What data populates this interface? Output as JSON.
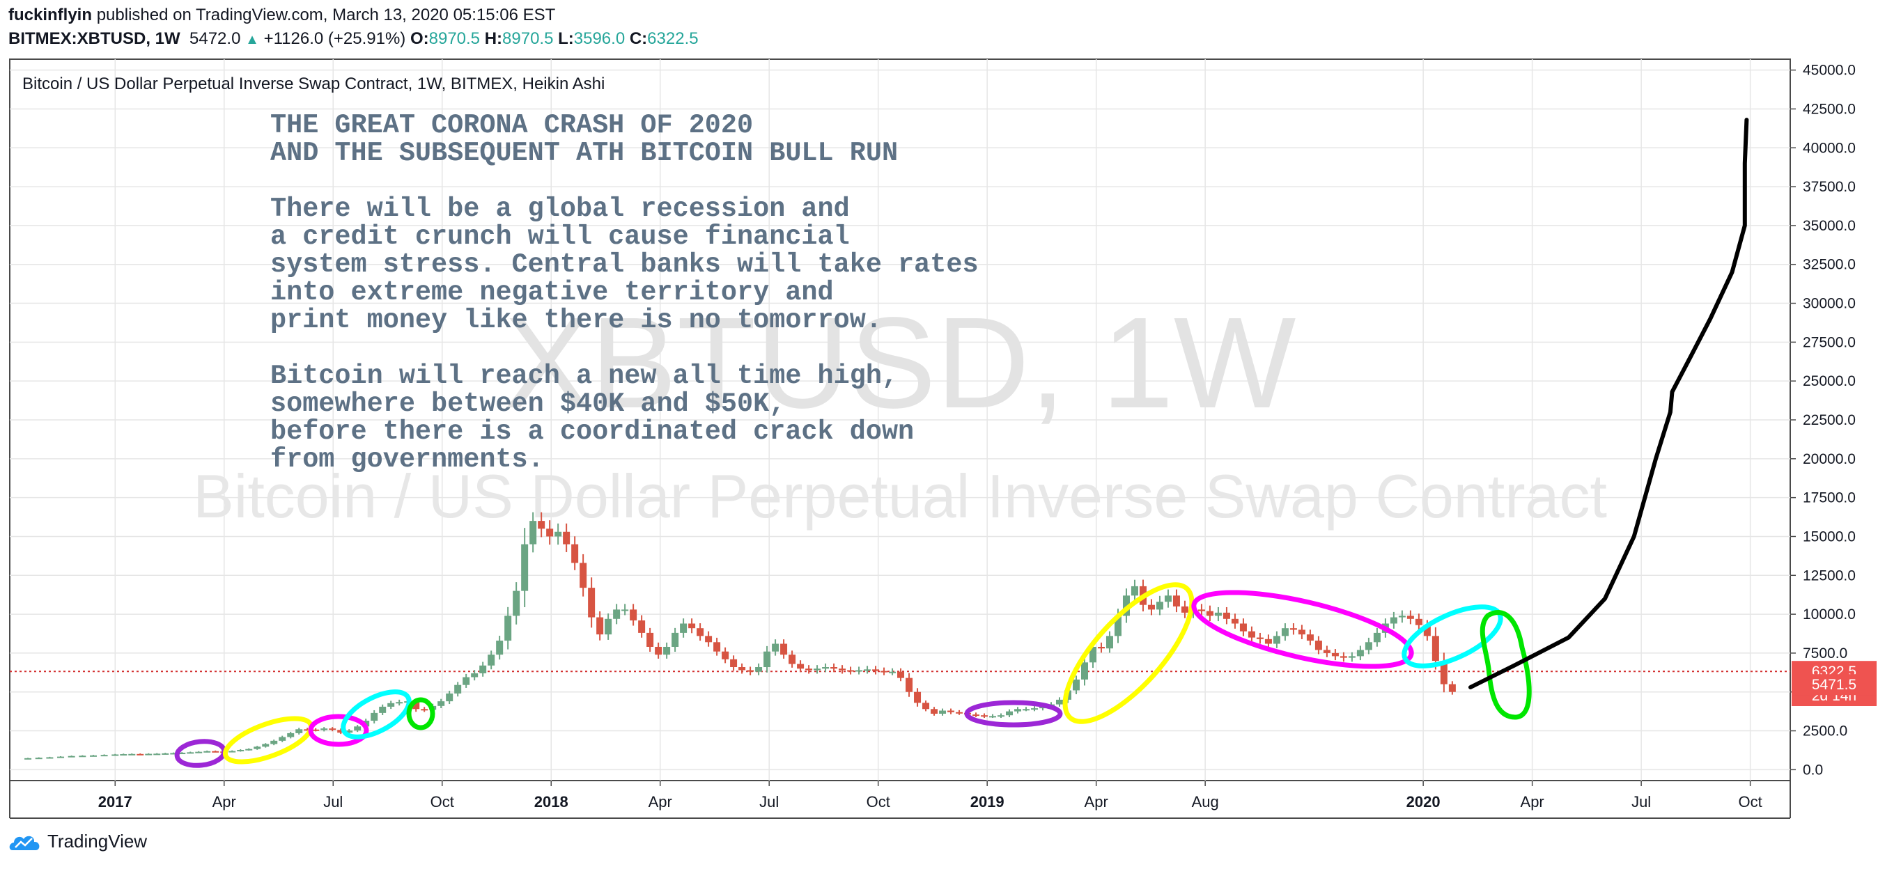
{
  "header": {
    "author": "fuckinflyin",
    "published": "published on TradingView.com, March 13, 2020 05:15:06 EST",
    "symbol": "BITMEX:XBTUSD, 1W",
    "last": "5472.0",
    "change": "+1126.0 (+25.91%)",
    "open_label": "O:",
    "open": "8970.5",
    "high_label": "H:",
    "high": "8970.5",
    "low_label": "L:",
    "low": "3596.0",
    "close_label": "C:",
    "close": "6322.5"
  },
  "legend_title": "Bitcoin / US Dollar Perpetual Inverse Swap Contract, 1W, BITMEX, Heikin Ashi",
  "watermark": {
    "line1": "XBTUSD, 1W",
    "line2": "Bitcoin / US Dollar Perpetual Inverse Swap Contract"
  },
  "annotation": {
    "heading1": "THE GREAT CORONA CRASH OF 2020",
    "heading2": "AND THE SUBSEQUENT ATH BITCOIN BULL RUN",
    "p1": [
      "There will be a global recession and",
      "a credit crunch will cause financial",
      "system stress. Central banks will take rates",
      "into extreme negative territory and",
      "print money like there is no tomorrow."
    ],
    "p2": [
      "Bitcoin will reach a new all time high,",
      "somewhere between $40K and $50K,",
      "before there is a coordinated crack down",
      "from governments."
    ]
  },
  "price_tags": {
    "last_price": "6322.5",
    "countdown": "2d 14h",
    "current": "5471.5"
  },
  "brand": "TradingView",
  "colors": {
    "up": "#6ba583",
    "down": "#d75442",
    "tag": "#ef5350",
    "grid": "#e6e6e6",
    "text": "#131722",
    "annotation": "#5d7185",
    "yellow": "#ffff00",
    "magenta": "#ff00ff",
    "cyan": "#00ffff",
    "purple": "#9c27d6",
    "green": "#00e600"
  },
  "chart_data": {
    "type": "candlestick",
    "style": "Heikin Ashi",
    "timeframe": "1W",
    "yaxis": {
      "ticks": [
        0,
        2500,
        5000,
        7500,
        10000,
        12500,
        15000,
        17500,
        20000,
        22500,
        25000,
        27500,
        30000,
        32500,
        35000,
        37500,
        40000,
        42500,
        45000
      ],
      "labels": [
        "0.0",
        "2500.0",
        "5000.0",
        "7500.0",
        "10000.0",
        "12500.0",
        "15000.0",
        "17500.0",
        "20000.0",
        "22500.0",
        "25000.0",
        "27500.0",
        "30000.0",
        "32500.0",
        "35000.0",
        "37500.0",
        "40000.0",
        "42500.0",
        "45000.0"
      ],
      "ylim": [
        -700,
        45700
      ]
    },
    "xaxis": {
      "labels": [
        {
          "t": 0,
          "text": "2017",
          "bold": true
        },
        {
          "t": 3,
          "text": "Apr"
        },
        {
          "t": 6,
          "text": "Jul"
        },
        {
          "t": 9,
          "text": "Oct"
        },
        {
          "t": 12,
          "text": "2018",
          "bold": true
        },
        {
          "t": 15,
          "text": "Apr"
        },
        {
          "t": 18,
          "text": "Jul"
        },
        {
          "t": 21,
          "text": "Oct"
        },
        {
          "t": 24,
          "text": "2019",
          "bold": true
        },
        {
          "t": 27,
          "text": "Apr"
        },
        {
          "t": 30,
          "text": "Aug"
        },
        {
          "t": 36,
          "text": "2020",
          "bold": true
        },
        {
          "t": 39,
          "text": "Apr"
        },
        {
          "t": 42,
          "text": "Jul"
        },
        {
          "t": 45,
          "text": "Oct"
        }
      ],
      "xlim": [
        -2.9,
        46.1
      ],
      "unit": "months since Jan 2017"
    },
    "last_price_line": 6322.5,
    "series": [
      {
        "name": "XBTUSD weekly",
        "points": [
          [
            -2.7,
            700
          ],
          [
            -2.4,
            740
          ],
          [
            -2.1,
            770
          ],
          [
            -1.8,
            800
          ],
          [
            -1.5,
            840
          ],
          [
            -1.2,
            880
          ],
          [
            -0.9,
            900
          ],
          [
            -0.6,
            920
          ],
          [
            -0.3,
            950
          ],
          [
            0.0,
            980
          ],
          [
            0.23,
            1000
          ],
          [
            0.46,
            1010
          ],
          [
            0.69,
            1000
          ],
          [
            0.92,
            1020
          ],
          [
            1.15,
            1030
          ],
          [
            1.38,
            1050
          ],
          [
            1.61,
            1070
          ],
          [
            1.84,
            1090
          ],
          [
            2.07,
            1120
          ],
          [
            2.3,
            1150
          ],
          [
            2.53,
            1190
          ],
          [
            2.76,
            1170
          ],
          [
            2.99,
            1160
          ],
          [
            3.22,
            1200
          ],
          [
            3.45,
            1270
          ],
          [
            3.68,
            1330
          ],
          [
            3.91,
            1480
          ],
          [
            4.14,
            1650
          ],
          [
            4.37,
            1860
          ],
          [
            4.6,
            2100
          ],
          [
            4.83,
            2350
          ],
          [
            5.06,
            2600
          ],
          [
            5.29,
            2580
          ],
          [
            5.52,
            2550
          ],
          [
            5.75,
            2650
          ],
          [
            5.98,
            2560
          ],
          [
            6.21,
            2380
          ],
          [
            6.44,
            2520
          ],
          [
            6.67,
            2780
          ],
          [
            6.9,
            3150
          ],
          [
            7.13,
            3650
          ],
          [
            7.36,
            4050
          ],
          [
            7.59,
            4280
          ],
          [
            7.82,
            4350
          ],
          [
            8.05,
            4400
          ],
          [
            8.28,
            3900
          ],
          [
            8.51,
            3850
          ],
          [
            8.74,
            4100
          ],
          [
            8.97,
            4400
          ],
          [
            9.2,
            4900
          ],
          [
            9.43,
            5450
          ],
          [
            9.66,
            5950
          ],
          [
            9.89,
            6200
          ],
          [
            10.12,
            6700
          ],
          [
            10.35,
            7400
          ],
          [
            10.58,
            8300
          ],
          [
            10.81,
            9900
          ],
          [
            11.04,
            11500
          ],
          [
            11.27,
            14500
          ],
          [
            11.5,
            16000
          ],
          [
            11.73,
            15500
          ],
          [
            11.96,
            15000
          ],
          [
            12.19,
            15300
          ],
          [
            12.42,
            14500
          ],
          [
            12.65,
            13300
          ],
          [
            12.88,
            11700
          ],
          [
            13.11,
            9800
          ],
          [
            13.34,
            8700
          ],
          [
            13.57,
            9700
          ],
          [
            13.8,
            10300
          ],
          [
            14.03,
            10300
          ],
          [
            14.26,
            9600
          ],
          [
            14.49,
            8800
          ],
          [
            14.72,
            7900
          ],
          [
            14.95,
            7400
          ],
          [
            15.18,
            7900
          ],
          [
            15.41,
            8800
          ],
          [
            15.64,
            9400
          ],
          [
            15.87,
            9100
          ],
          [
            16.1,
            8600
          ],
          [
            16.33,
            8200
          ],
          [
            16.56,
            7600
          ],
          [
            16.79,
            7100
          ],
          [
            17.02,
            6600
          ],
          [
            17.25,
            6400
          ],
          [
            17.48,
            6300
          ],
          [
            17.71,
            6600
          ],
          [
            17.94,
            7600
          ],
          [
            18.17,
            8100
          ],
          [
            18.4,
            7400
          ],
          [
            18.63,
            6800
          ],
          [
            18.86,
            6500
          ],
          [
            19.09,
            6400
          ],
          [
            19.32,
            6500
          ],
          [
            19.55,
            6600
          ],
          [
            19.78,
            6500
          ],
          [
            20.01,
            6400
          ],
          [
            20.24,
            6350
          ],
          [
            20.47,
            6400
          ],
          [
            20.7,
            6450
          ],
          [
            20.93,
            6350
          ],
          [
            21.16,
            6300
          ],
          [
            21.39,
            6300
          ],
          [
            21.62,
            5900
          ],
          [
            21.85,
            5000
          ],
          [
            22.08,
            4300
          ],
          [
            22.31,
            3900
          ],
          [
            22.54,
            3600
          ],
          [
            22.77,
            3800
          ],
          [
            23.0,
            3700
          ],
          [
            23.23,
            3650
          ],
          [
            23.46,
            3550
          ],
          [
            23.69,
            3500
          ],
          [
            23.92,
            3450
          ],
          [
            24.15,
            3450
          ],
          [
            24.38,
            3500
          ],
          [
            24.61,
            3750
          ],
          [
            24.84,
            3900
          ],
          [
            25.07,
            3900
          ],
          [
            25.3,
            3950
          ],
          [
            25.53,
            4100
          ],
          [
            25.76,
            4200
          ],
          [
            25.99,
            4500
          ],
          [
            26.22,
            5100
          ],
          [
            26.45,
            5800
          ],
          [
            26.68,
            6900
          ],
          [
            26.91,
            7900
          ],
          [
            27.14,
            7800
          ],
          [
            27.37,
            8600
          ],
          [
            27.6,
            9900
          ],
          [
            27.83,
            11200
          ],
          [
            28.06,
            11800
          ],
          [
            28.29,
            10600
          ],
          [
            28.52,
            10300
          ],
          [
            28.75,
            10800
          ],
          [
            28.98,
            11200
          ],
          [
            29.21,
            10500
          ],
          [
            29.44,
            10100
          ],
          [
            29.67,
            10300
          ],
          [
            29.9,
            10200
          ],
          [
            30.13,
            9900
          ],
          [
            30.36,
            10100
          ],
          [
            30.59,
            9700
          ],
          [
            30.82,
            9400
          ],
          [
            31.05,
            8900
          ],
          [
            31.28,
            8500
          ],
          [
            31.51,
            8400
          ],
          [
            31.74,
            8100
          ],
          [
            31.97,
            8600
          ],
          [
            32.2,
            9100
          ],
          [
            32.43,
            9000
          ],
          [
            32.66,
            8700
          ],
          [
            32.89,
            8300
          ],
          [
            33.12,
            7700
          ],
          [
            33.35,
            7500
          ],
          [
            33.58,
            7300
          ],
          [
            33.81,
            7200
          ],
          [
            34.04,
            7300
          ],
          [
            34.27,
            7700
          ],
          [
            34.5,
            8200
          ],
          [
            34.73,
            8800
          ],
          [
            34.96,
            9400
          ],
          [
            35.19,
            9800
          ],
          [
            35.42,
            9900
          ],
          [
            35.65,
            9700
          ],
          [
            35.88,
            9300
          ],
          [
            36.11,
            8600
          ],
          [
            36.34,
            7000
          ],
          [
            36.57,
            5500
          ],
          [
            36.8,
            5000
          ]
        ]
      },
      {
        "name": "projection",
        "points": [
          [
            37.3,
            5300
          ],
          [
            38.5,
            6700
          ],
          [
            40.0,
            8500
          ],
          [
            41.0,
            11000
          ],
          [
            41.8,
            15000
          ],
          [
            42.4,
            20000
          ],
          [
            42.8,
            23000
          ],
          [
            42.85,
            24300
          ],
          [
            43.3,
            26300
          ],
          [
            43.9,
            29000
          ],
          [
            44.5,
            32000
          ],
          [
            44.85,
            35000
          ],
          [
            44.85,
            39000
          ],
          [
            44.9,
            41800
          ]
        ]
      }
    ]
  }
}
